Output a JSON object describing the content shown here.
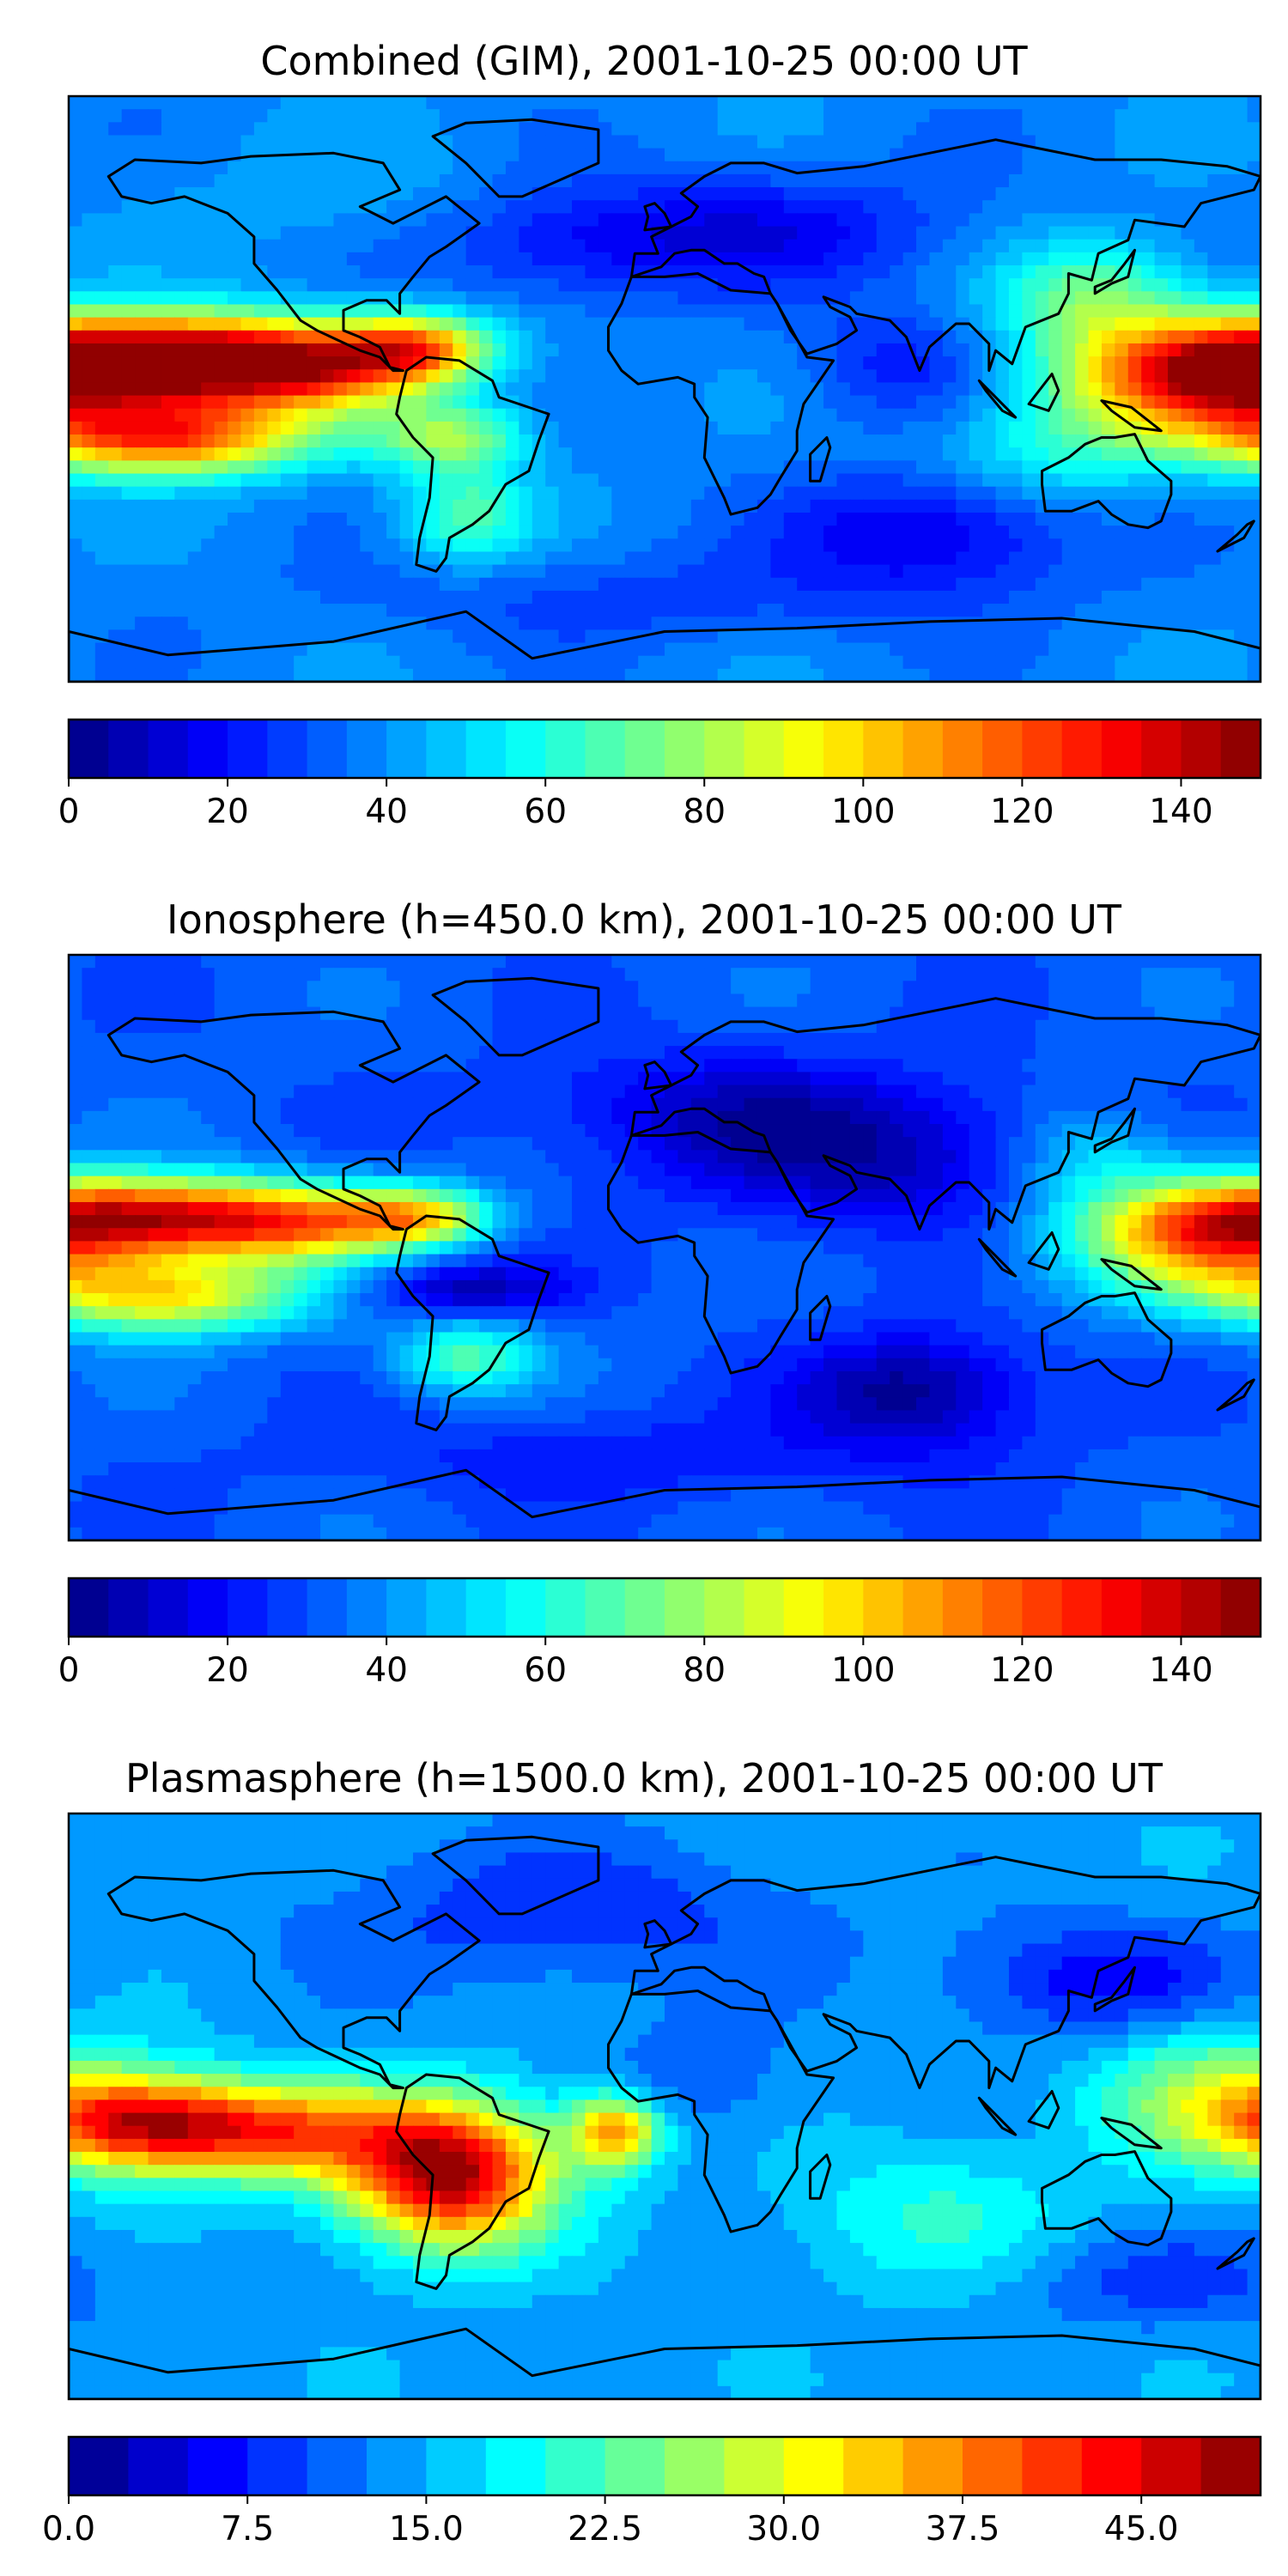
{
  "panels": [
    {
      "title": "Combined (GIM), 2001-10-25 00:00 UT",
      "colorbar": {
        "min": 0,
        "max": 150,
        "levels": 30,
        "ticks": [
          0,
          20,
          40,
          60,
          80,
          100,
          120,
          140
        ],
        "tick_labels": [
          "0",
          "20",
          "40",
          "60",
          "80",
          "100",
          "120",
          "140"
        ]
      }
    },
    {
      "title": "Ionosphere  (h=450.0 km), 2001-10-25 00:00 UT",
      "colorbar": {
        "min": 0,
        "max": 150,
        "levels": 30,
        "ticks": [
          0,
          20,
          40,
          60,
          80,
          100,
          120,
          140
        ],
        "tick_labels": [
          "0",
          "20",
          "40",
          "60",
          "80",
          "100",
          "120",
          "140"
        ]
      }
    },
    {
      "title": "Plasmasphere (h=1500.0 km), 2001-10-25 00:00 UT",
      "colorbar": {
        "min": 0,
        "max": 50,
        "levels": 20,
        "ticks": [
          0,
          7.5,
          15,
          22.5,
          30,
          37.5,
          45
        ],
        "tick_labels": [
          "0.0",
          "7.5",
          "15.0",
          "22.5",
          "30.0",
          "37.5",
          "45.0"
        ]
      }
    }
  ],
  "chart_data": [
    {
      "type": "heatmap",
      "title": "Combined (GIM), 2001-10-25 00:00 UT",
      "colormap": "jet",
      "value_range": [
        0,
        150
      ],
      "hotspots": [
        {
          "region": "central Pacific north of equator",
          "value": 145
        },
        {
          "region": "central Pacific south of equator",
          "value": 130
        },
        {
          "region": "northern South America",
          "value": 120
        },
        {
          "region": "southern South America",
          "value": 105
        },
        {
          "region": "western Pacific",
          "value": 125
        },
        {
          "region": "southern Indian Ocean",
          "value": 10
        }
      ]
    },
    {
      "type": "heatmap",
      "title": "Ionosphere  (h=450.0 km), 2001-10-25 00:00 UT",
      "colormap": "jet",
      "value_range": [
        0,
        150
      ],
      "hotspots": [
        {
          "region": "central Pacific north of equator",
          "value": 125
        },
        {
          "region": "central Pacific south of equator",
          "value": 100
        },
        {
          "region": "northern South America",
          "value": 95
        },
        {
          "region": "equatorial South America",
          "value": 8
        },
        {
          "region": "western Pacific",
          "value": 105
        },
        {
          "region": "southern Indian Ocean",
          "value": 5
        }
      ]
    },
    {
      "type": "heatmap",
      "title": "Plasmasphere (h=1500.0 km), 2001-10-25 00:00 UT",
      "colormap": "jet",
      "value_range": [
        0,
        50
      ],
      "hotspots": [
        {
          "region": "central South America",
          "value": 48
        },
        {
          "region": "eastern Pacific",
          "value": 40
        },
        {
          "region": "central Pacific",
          "value": 38
        },
        {
          "region": "equatorial Atlantic",
          "value": 37
        },
        {
          "region": "western Pacific",
          "value": 28
        },
        {
          "region": "northeast Asia",
          "value": 4
        }
      ]
    }
  ]
}
